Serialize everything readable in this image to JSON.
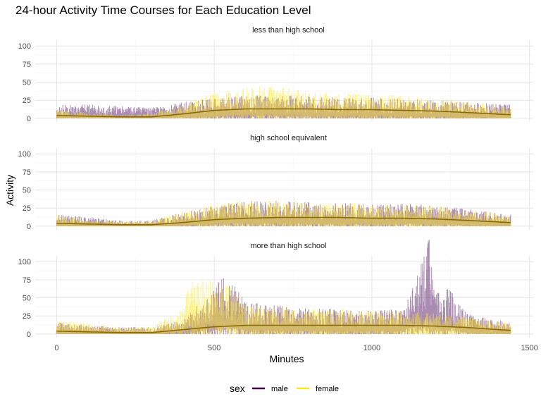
{
  "chart_data": {
    "type": "line",
    "title": "24-hour Activity Time Courses for Each Education Level",
    "xlabel": "Minutes",
    "ylabel": "Activity",
    "xlim": [
      0,
      1440
    ],
    "ylim": [
      0,
      105
    ],
    "x_ticks": [
      0,
      500,
      1000,
      1500
    ],
    "y_ticks": [
      0,
      25,
      50,
      75,
      100
    ],
    "grid": true,
    "legend": {
      "title": "sex",
      "position": "bottom",
      "entries": [
        "male",
        "female"
      ]
    },
    "colors": {
      "male": "#440154",
      "female": "#FDE725",
      "smooth": "#8a6a00"
    },
    "facets": [
      {
        "label": "less than high school",
        "series": [
          {
            "name": "male",
            "x": [
              0,
              100,
              200,
              300,
              400,
              500,
              600,
              700,
              800,
              900,
              1000,
              1100,
              1200,
              1300,
              1440
            ],
            "y": [
              12,
              12,
              11,
              9,
              14,
              18,
              20,
              20,
              19,
              18,
              18,
              17,
              16,
              14,
              12
            ]
          },
          {
            "name": "female",
            "x": [
              0,
              100,
              200,
              300,
              400,
              500,
              600,
              700,
              800,
              900,
              1000,
              1100,
              1200,
              1300,
              1440
            ],
            "y": [
              8,
              5,
              3,
              4,
              12,
              22,
              28,
              27,
              24,
              22,
              21,
              20,
              18,
              15,
              10
            ]
          }
        ],
        "smooth": {
          "x": [
            0,
            100,
            200,
            300,
            400,
            500,
            600,
            700,
            800,
            900,
            1000,
            1100,
            1200,
            1300,
            1440
          ],
          "y": [
            4,
            3,
            2,
            2,
            6,
            11,
            13,
            13,
            13,
            12,
            12,
            11,
            10,
            8,
            5
          ]
        }
      },
      {
        "label": "high school equivalent",
        "series": [
          {
            "name": "male",
            "x": [
              0,
              100,
              200,
              300,
              400,
              500,
              600,
              700,
              800,
              900,
              1000,
              1100,
              1200,
              1300,
              1440
            ],
            "y": [
              10,
              8,
              5,
              5,
              12,
              18,
              22,
              22,
              21,
              20,
              19,
              20,
              18,
              15,
              10
            ]
          },
          {
            "name": "female",
            "x": [
              0,
              100,
              200,
              300,
              400,
              500,
              600,
              700,
              800,
              900,
              1000,
              1100,
              1200,
              1300,
              1440
            ],
            "y": [
              10,
              6,
              4,
              5,
              14,
              20,
              22,
              22,
              21,
              20,
              20,
              19,
              18,
              14,
              10
            ]
          }
        ],
        "smooth": {
          "x": [
            0,
            100,
            200,
            300,
            400,
            500,
            600,
            700,
            800,
            900,
            1000,
            1100,
            1200,
            1300,
            1440
          ],
          "y": [
            4,
            3,
            2,
            2,
            5,
            9,
            11,
            12,
            12,
            12,
            11,
            11,
            10,
            8,
            5
          ]
        }
      },
      {
        "label": "more than high school",
        "series": [
          {
            "name": "male",
            "x": [
              0,
              100,
              200,
              300,
              400,
              500,
              530,
              600,
              700,
              800,
              900,
              1000,
              1100,
              1150,
              1180,
              1200,
              1250,
              1300,
              1440
            ],
            "y": [
              10,
              8,
              6,
              6,
              12,
              40,
              55,
              28,
              25,
              22,
              22,
              21,
              22,
              55,
              90,
              35,
              40,
              18,
              10
            ]
          },
          {
            "name": "female",
            "x": [
              0,
              100,
              200,
              300,
              400,
              420,
              500,
              550,
              600,
              700,
              800,
              900,
              1000,
              1100,
              1200,
              1300,
              1440
            ],
            "y": [
              12,
              9,
              6,
              7,
              22,
              45,
              50,
              40,
              25,
              24,
              22,
              22,
              21,
              20,
              18,
              15,
              10
            ]
          }
        ],
        "smooth": {
          "x": [
            0,
            100,
            200,
            300,
            400,
            500,
            600,
            700,
            800,
            900,
            1000,
            1100,
            1200,
            1300,
            1440
          ],
          "y": [
            4,
            3,
            2,
            2,
            6,
            10,
            12,
            12,
            12,
            12,
            12,
            12,
            11,
            9,
            5
          ]
        }
      }
    ]
  }
}
